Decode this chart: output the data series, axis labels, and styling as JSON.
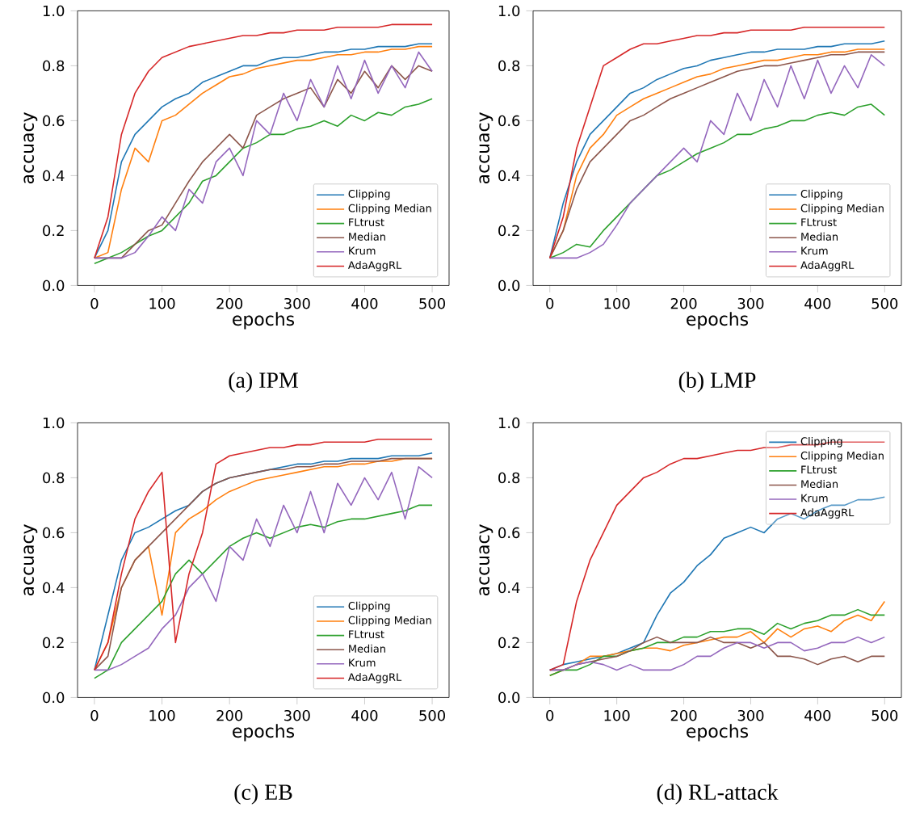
{
  "chart_data": [
    {
      "type": "line",
      "xlabel": "epochs",
      "ylabel": "accuacy",
      "annotations": [
        "(a) IPM"
      ],
      "xlim": [
        -25,
        525
      ],
      "ylim": [
        0,
        1
      ],
      "xticks": [
        0,
        100,
        200,
        300,
        400,
        500
      ],
      "yticks": [
        {
          "value": 0,
          "label": "0.0"
        },
        {
          "value": 0.2,
          "label": "0.2"
        },
        {
          "value": 0.4,
          "label": "0.4"
        },
        {
          "value": 0.6,
          "label": "0.6"
        },
        {
          "value": 0.8,
          "label": "0.8"
        },
        {
          "value": 1,
          "label": "1.0"
        }
      ],
      "legend": "bottom right",
      "x": [
        0,
        20,
        40,
        60,
        80,
        100,
        120,
        140,
        160,
        180,
        200,
        220,
        240,
        260,
        280,
        300,
        320,
        340,
        360,
        380,
        400,
        420,
        440,
        460,
        480,
        500
      ],
      "series": [
        {
          "name": "Clipping",
          "color": "#1f77b4",
          "values": [
            0.1,
            0.2,
            0.45,
            0.55,
            0.6,
            0.65,
            0.68,
            0.7,
            0.74,
            0.76,
            0.78,
            0.8,
            0.8,
            0.82,
            0.83,
            0.83,
            0.84,
            0.85,
            0.85,
            0.86,
            0.86,
            0.87,
            0.87,
            0.87,
            0.88,
            0.88
          ]
        },
        {
          "name": "Clipping Median",
          "color": "#ff7f0e",
          "values": [
            0.1,
            0.12,
            0.35,
            0.5,
            0.45,
            0.6,
            0.62,
            0.66,
            0.7,
            0.73,
            0.76,
            0.77,
            0.79,
            0.8,
            0.81,
            0.82,
            0.82,
            0.83,
            0.84,
            0.84,
            0.85,
            0.85,
            0.86,
            0.86,
            0.87,
            0.87
          ]
        },
        {
          "name": "FLtrust",
          "color": "#2ca02c",
          "values": [
            0.08,
            0.1,
            0.12,
            0.15,
            0.18,
            0.2,
            0.25,
            0.3,
            0.38,
            0.4,
            0.45,
            0.5,
            0.52,
            0.55,
            0.55,
            0.57,
            0.58,
            0.6,
            0.58,
            0.62,
            0.6,
            0.63,
            0.62,
            0.65,
            0.66,
            0.68
          ]
        },
        {
          "name": "Median",
          "color": "#8c564b",
          "values": [
            0.1,
            0.1,
            0.1,
            0.15,
            0.2,
            0.22,
            0.3,
            0.38,
            0.45,
            0.5,
            0.55,
            0.5,
            0.62,
            0.65,
            0.68,
            0.7,
            0.72,
            0.65,
            0.75,
            0.7,
            0.78,
            0.72,
            0.8,
            0.75,
            0.8,
            0.78
          ]
        },
        {
          "name": "Krum",
          "color": "#9467bd",
          "values": [
            0.1,
            0.1,
            0.1,
            0.12,
            0.18,
            0.25,
            0.2,
            0.35,
            0.3,
            0.45,
            0.5,
            0.4,
            0.6,
            0.55,
            0.7,
            0.6,
            0.75,
            0.65,
            0.8,
            0.68,
            0.82,
            0.7,
            0.8,
            0.72,
            0.85,
            0.78
          ]
        },
        {
          "name": "AdaAggRL",
          "color": "#d62728",
          "values": [
            0.1,
            0.25,
            0.55,
            0.7,
            0.78,
            0.83,
            0.85,
            0.87,
            0.88,
            0.89,
            0.9,
            0.91,
            0.91,
            0.92,
            0.92,
            0.93,
            0.93,
            0.93,
            0.94,
            0.94,
            0.94,
            0.94,
            0.95,
            0.95,
            0.95,
            0.95
          ]
        }
      ]
    },
    {
      "type": "line",
      "xlabel": "epochs",
      "ylabel": "accuacy",
      "annotations": [
        "(b) LMP"
      ],
      "xlim": [
        -25,
        525
      ],
      "ylim": [
        0,
        1
      ],
      "xticks": [
        0,
        100,
        200,
        300,
        400,
        500
      ],
      "yticks": [
        {
          "value": 0,
          "label": "0.0"
        },
        {
          "value": 0.2,
          "label": "0.2"
        },
        {
          "value": 0.4,
          "label": "0.4"
        },
        {
          "value": 0.6,
          "label": "0.6"
        },
        {
          "value": 0.8,
          "label": "0.8"
        },
        {
          "value": 1,
          "label": "1.0"
        }
      ],
      "legend": "bottom right",
      "x": [
        0,
        20,
        40,
        60,
        80,
        100,
        120,
        140,
        160,
        180,
        200,
        220,
        240,
        260,
        280,
        300,
        320,
        340,
        360,
        380,
        400,
        420,
        440,
        460,
        480,
        500
      ],
      "series": [
        {
          "name": "Clipping",
          "color": "#1f77b4",
          "values": [
            0.1,
            0.3,
            0.45,
            0.55,
            0.6,
            0.65,
            0.7,
            0.72,
            0.75,
            0.77,
            0.79,
            0.8,
            0.82,
            0.83,
            0.84,
            0.85,
            0.85,
            0.86,
            0.86,
            0.86,
            0.87,
            0.87,
            0.88,
            0.88,
            0.88,
            0.89
          ]
        },
        {
          "name": "Clipping Median",
          "color": "#ff7f0e",
          "values": [
            0.1,
            0.2,
            0.4,
            0.5,
            0.55,
            0.62,
            0.65,
            0.68,
            0.7,
            0.72,
            0.74,
            0.76,
            0.77,
            0.79,
            0.8,
            0.81,
            0.82,
            0.82,
            0.83,
            0.84,
            0.84,
            0.85,
            0.85,
            0.86,
            0.86,
            0.86
          ]
        },
        {
          "name": "FLtrust",
          "color": "#2ca02c",
          "values": [
            0.1,
            0.12,
            0.15,
            0.14,
            0.2,
            0.25,
            0.3,
            0.35,
            0.4,
            0.42,
            0.45,
            0.48,
            0.5,
            0.52,
            0.55,
            0.55,
            0.57,
            0.58,
            0.6,
            0.6,
            0.62,
            0.63,
            0.62,
            0.65,
            0.66,
            0.62
          ]
        },
        {
          "name": "Median",
          "color": "#8c564b",
          "values": [
            0.1,
            0.2,
            0.35,
            0.45,
            0.5,
            0.55,
            0.6,
            0.62,
            0.65,
            0.68,
            0.7,
            0.72,
            0.74,
            0.76,
            0.78,
            0.79,
            0.8,
            0.8,
            0.81,
            0.82,
            0.83,
            0.84,
            0.84,
            0.85,
            0.85,
            0.85
          ]
        },
        {
          "name": "Krum",
          "color": "#9467bd",
          "values": [
            0.1,
            0.1,
            0.1,
            0.12,
            0.15,
            0.22,
            0.3,
            0.35,
            0.4,
            0.45,
            0.5,
            0.45,
            0.6,
            0.55,
            0.7,
            0.6,
            0.75,
            0.65,
            0.8,
            0.68,
            0.82,
            0.7,
            0.8,
            0.72,
            0.84,
            0.8
          ]
        },
        {
          "name": "AdaAggRL",
          "color": "#d62728",
          "values": [
            0.1,
            0.25,
            0.5,
            0.65,
            0.8,
            0.83,
            0.86,
            0.88,
            0.88,
            0.89,
            0.9,
            0.91,
            0.91,
            0.92,
            0.92,
            0.93,
            0.93,
            0.93,
            0.93,
            0.94,
            0.94,
            0.94,
            0.94,
            0.94,
            0.94,
            0.94
          ]
        }
      ]
    },
    {
      "type": "line",
      "xlabel": "epochs",
      "ylabel": "accuacy",
      "annotations": [
        "(c) EB"
      ],
      "xlim": [
        -25,
        525
      ],
      "ylim": [
        0,
        1
      ],
      "xticks": [
        0,
        100,
        200,
        300,
        400,
        500
      ],
      "yticks": [
        {
          "value": 0,
          "label": "0.0"
        },
        {
          "value": 0.2,
          "label": "0.2"
        },
        {
          "value": 0.4,
          "label": "0.4"
        },
        {
          "value": 0.6,
          "label": "0.6"
        },
        {
          "value": 0.8,
          "label": "0.8"
        },
        {
          "value": 1,
          "label": "1.0"
        }
      ],
      "legend": "bottom right",
      "x": [
        0,
        20,
        40,
        60,
        80,
        100,
        120,
        140,
        160,
        180,
        200,
        220,
        240,
        260,
        280,
        300,
        320,
        340,
        360,
        380,
        400,
        420,
        440,
        460,
        480,
        500
      ],
      "series": [
        {
          "name": "Clipping",
          "color": "#1f77b4",
          "values": [
            0.1,
            0.3,
            0.5,
            0.6,
            0.62,
            0.65,
            0.68,
            0.7,
            0.75,
            0.78,
            0.8,
            0.81,
            0.82,
            0.83,
            0.84,
            0.85,
            0.85,
            0.86,
            0.86,
            0.87,
            0.87,
            0.87,
            0.88,
            0.88,
            0.88,
            0.89
          ]
        },
        {
          "name": "Clipping Median",
          "color": "#ff7f0e",
          "values": [
            0.1,
            0.2,
            0.4,
            0.5,
            0.55,
            0.3,
            0.6,
            0.65,
            0.68,
            0.72,
            0.75,
            0.77,
            0.79,
            0.8,
            0.81,
            0.82,
            0.83,
            0.84,
            0.84,
            0.85,
            0.85,
            0.86,
            0.86,
            0.87,
            0.87,
            0.87
          ]
        },
        {
          "name": "FLtrust",
          "color": "#2ca02c",
          "values": [
            0.07,
            0.1,
            0.2,
            0.25,
            0.3,
            0.35,
            0.45,
            0.5,
            0.45,
            0.5,
            0.55,
            0.58,
            0.6,
            0.58,
            0.6,
            0.62,
            0.63,
            0.62,
            0.64,
            0.65,
            0.65,
            0.66,
            0.67,
            0.68,
            0.7,
            0.7
          ]
        },
        {
          "name": "Median",
          "color": "#8c564b",
          "values": [
            0.1,
            0.15,
            0.4,
            0.5,
            0.55,
            0.6,
            0.65,
            0.7,
            0.75,
            0.78,
            0.8,
            0.81,
            0.82,
            0.83,
            0.83,
            0.84,
            0.84,
            0.85,
            0.85,
            0.86,
            0.86,
            0.86,
            0.87,
            0.87,
            0.87,
            0.87
          ]
        },
        {
          "name": "Krum",
          "color": "#9467bd",
          "values": [
            0.1,
            0.1,
            0.12,
            0.15,
            0.18,
            0.25,
            0.3,
            0.4,
            0.45,
            0.35,
            0.55,
            0.5,
            0.65,
            0.55,
            0.7,
            0.6,
            0.75,
            0.6,
            0.78,
            0.7,
            0.8,
            0.72,
            0.82,
            0.65,
            0.84,
            0.8
          ]
        },
        {
          "name": "AdaAggRL",
          "color": "#d62728",
          "values": [
            0.1,
            0.2,
            0.45,
            0.65,
            0.75,
            0.82,
            0.2,
            0.45,
            0.6,
            0.85,
            0.88,
            0.89,
            0.9,
            0.91,
            0.91,
            0.92,
            0.92,
            0.93,
            0.93,
            0.93,
            0.93,
            0.94,
            0.94,
            0.94,
            0.94,
            0.94
          ]
        }
      ]
    },
    {
      "type": "line",
      "xlabel": "epochs",
      "ylabel": "accuacy",
      "annotations": [
        "(d) RL-attack"
      ],
      "xlim": [
        -25,
        525
      ],
      "ylim": [
        0,
        1
      ],
      "xticks": [
        0,
        100,
        200,
        300,
        400,
        500
      ],
      "yticks": [
        {
          "value": 0,
          "label": "0.0"
        },
        {
          "value": 0.2,
          "label": "0.2"
        },
        {
          "value": 0.4,
          "label": "0.4"
        },
        {
          "value": 0.6,
          "label": "0.6"
        },
        {
          "value": 0.8,
          "label": "0.8"
        },
        {
          "value": 1,
          "label": "1.0"
        }
      ],
      "legend": "top right",
      "x": [
        0,
        20,
        40,
        60,
        80,
        100,
        120,
        140,
        160,
        180,
        200,
        220,
        240,
        260,
        280,
        300,
        320,
        340,
        360,
        380,
        400,
        420,
        440,
        460,
        480,
        500
      ],
      "series": [
        {
          "name": "Clipping",
          "color": "#1f77b4",
          "values": [
            0.1,
            0.12,
            0.13,
            0.14,
            0.15,
            0.16,
            0.18,
            0.2,
            0.3,
            0.38,
            0.42,
            0.48,
            0.52,
            0.58,
            0.6,
            0.62,
            0.6,
            0.65,
            0.67,
            0.65,
            0.68,
            0.7,
            0.7,
            0.72,
            0.72,
            0.73
          ]
        },
        {
          "name": "Clipping Median",
          "color": "#ff7f0e",
          "values": [
            0.08,
            0.1,
            0.12,
            0.15,
            0.15,
            0.16,
            0.17,
            0.18,
            0.18,
            0.17,
            0.19,
            0.2,
            0.21,
            0.22,
            0.22,
            0.24,
            0.2,
            0.25,
            0.22,
            0.25,
            0.26,
            0.24,
            0.28,
            0.3,
            0.28,
            0.35
          ]
        },
        {
          "name": "FLtrust",
          "color": "#2ca02c",
          "values": [
            0.08,
            0.1,
            0.1,
            0.12,
            0.15,
            0.15,
            0.17,
            0.18,
            0.2,
            0.2,
            0.22,
            0.22,
            0.24,
            0.24,
            0.25,
            0.25,
            0.23,
            0.27,
            0.25,
            0.27,
            0.28,
            0.3,
            0.3,
            0.32,
            0.3,
            0.3
          ]
        },
        {
          "name": "Median",
          "color": "#8c564b",
          "values": [
            0.1,
            0.1,
            0.12,
            0.13,
            0.14,
            0.15,
            0.17,
            0.2,
            0.22,
            0.2,
            0.2,
            0.2,
            0.22,
            0.2,
            0.2,
            0.18,
            0.2,
            0.15,
            0.15,
            0.14,
            0.12,
            0.14,
            0.15,
            0.13,
            0.15,
            0.15
          ]
        },
        {
          "name": "Krum",
          "color": "#9467bd",
          "values": [
            0.1,
            0.1,
            0.12,
            0.13,
            0.12,
            0.1,
            0.12,
            0.1,
            0.1,
            0.1,
            0.12,
            0.15,
            0.15,
            0.18,
            0.2,
            0.2,
            0.18,
            0.2,
            0.2,
            0.17,
            0.18,
            0.2,
            0.2,
            0.22,
            0.2,
            0.22
          ]
        },
        {
          "name": "AdaAggRL",
          "color": "#d62728",
          "values": [
            0.1,
            0.12,
            0.35,
            0.5,
            0.6,
            0.7,
            0.75,
            0.8,
            0.82,
            0.85,
            0.87,
            0.87,
            0.88,
            0.89,
            0.9,
            0.9,
            0.91,
            0.91,
            0.92,
            0.92,
            0.92,
            0.93,
            0.93,
            0.93,
            0.93,
            0.93
          ]
        }
      ]
    }
  ]
}
